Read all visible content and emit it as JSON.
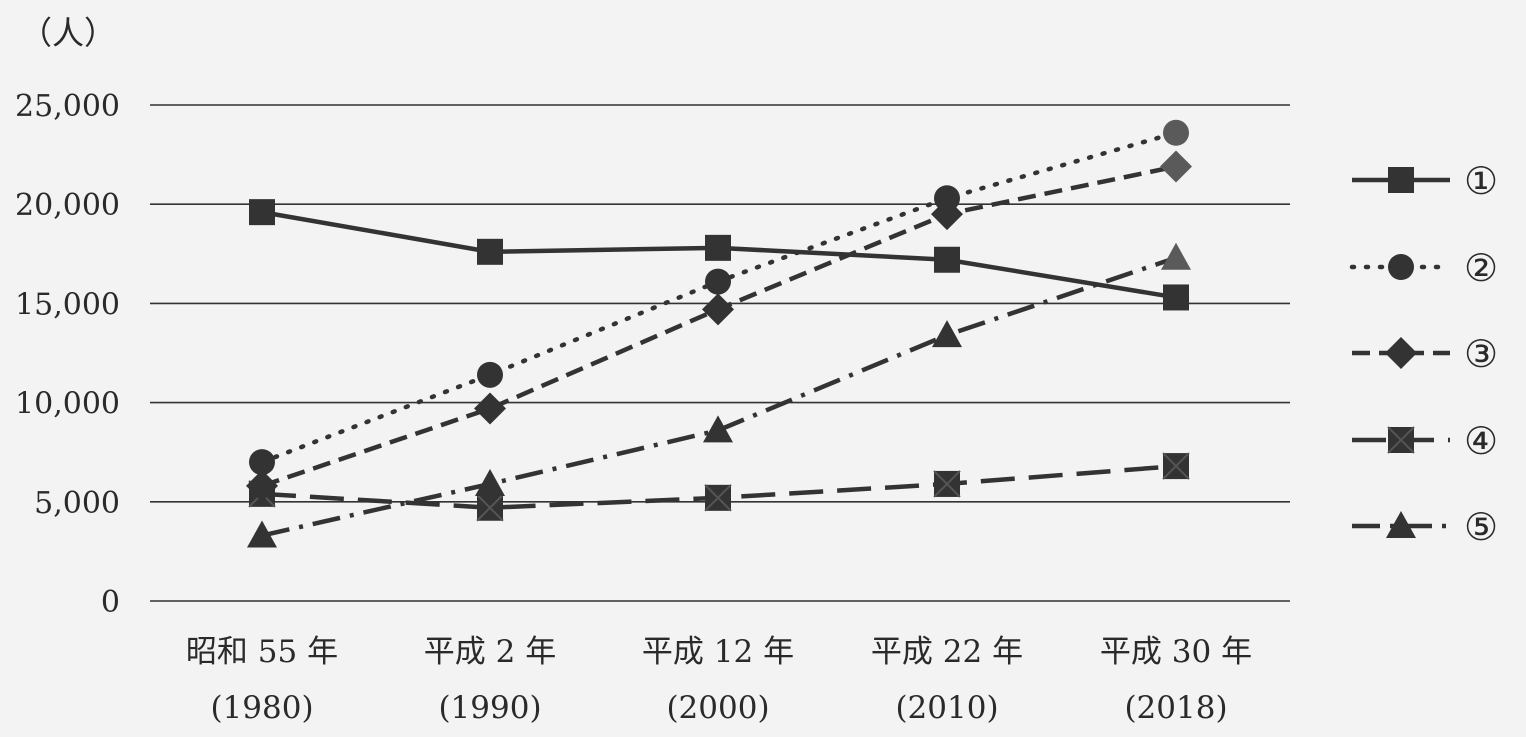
{
  "chart_data": {
    "type": "line",
    "unit_label": "（人）",
    "categories": [
      {
        "line1": "昭和 55 年",
        "line2": "(1980)"
      },
      {
        "line1": "平成 2 年",
        "line2": "(1990)"
      },
      {
        "line1": "平成 12 年",
        "line2": "(2000)"
      },
      {
        "line1": "平成 22 年",
        "line2": "(2010)"
      },
      {
        "line1": "平成 30 年",
        "line2": "(2018)"
      }
    ],
    "ylim": [
      0,
      25000
    ],
    "yticks": [
      0,
      5000,
      10000,
      15000,
      20000,
      25000
    ],
    "ytick_labels": [
      "0",
      "5,000",
      "10,000",
      "15,000",
      "20,000",
      "25,000"
    ],
    "grid": true,
    "legend_position": "right",
    "series": [
      {
        "name": "①",
        "marker": "square",
        "dash": "solid",
        "values": [
          19600,
          17600,
          17800,
          17200,
          15300
        ]
      },
      {
        "name": "②",
        "marker": "circle",
        "dash": "dotted",
        "values": [
          7000,
          11400,
          16100,
          20300,
          23600
        ]
      },
      {
        "name": "③",
        "marker": "diamond",
        "dash": "dashed",
        "values": [
          5800,
          9700,
          14700,
          19500,
          21900
        ]
      },
      {
        "name": "④",
        "marker": "square-x",
        "dash": "longdash",
        "values": [
          5400,
          4700,
          5200,
          5900,
          6800
        ]
      },
      {
        "name": "⑤",
        "marker": "triangle",
        "dash": "dashdot",
        "values": [
          3300,
          5900,
          8600,
          13400,
          17300
        ]
      }
    ]
  }
}
